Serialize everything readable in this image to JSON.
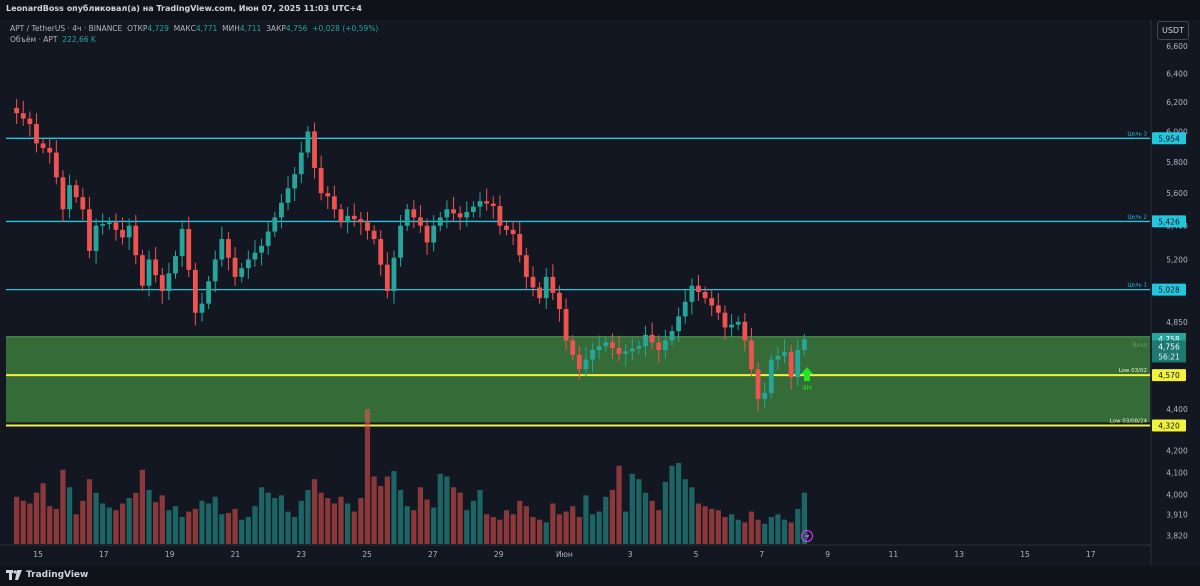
{
  "header": {
    "publish_line": "LeonardBoss опубликовал(а) на TradingView.com, Июн 07, 2025 11:03 UTC+4"
  },
  "legend": {
    "symbol": "APT / TetherUS · 4ч · BINANCE",
    "open_label": "ОТКР",
    "open": "4,729",
    "high_label": "МАКС",
    "high": "4,771",
    "low_label": "МИН",
    "low": "4,711",
    "close_label": "ЗАКР",
    "close": "4,756",
    "change": "+0,028 (+0,59%)",
    "volume_label": "Объём · APT",
    "volume": "222,66 K"
  },
  "currency_badge": "USDT",
  "footer": {
    "brand": "TradingView"
  },
  "colors": {
    "background": "#131722",
    "up": "#26a69a",
    "down": "#ef5350",
    "target_line": "#22c7de",
    "low_line": "#f2f23d",
    "zone_fill": "#3b7a3b",
    "signal": "#21e621"
  },
  "chart_data": {
    "type": "candlestick",
    "symbol": "APT / TetherUS",
    "timeframe": "4ч",
    "exchange": "BINANCE",
    "y_axis": {
      "ylim": [
        3.78,
        6.78
      ],
      "scale": "log",
      "ticks": [
        "6,600",
        "6,400",
        "6,200",
        "6,000",
        "5,800",
        "5,600",
        "5,400",
        "5,200",
        "4,850",
        "4,400",
        "4,200",
        "4,100",
        "4,000",
        "3,910",
        "3,820"
      ]
    },
    "x_axis": {
      "ticks": [
        "15",
        "17",
        "19",
        "21",
        "23",
        "25",
        "27",
        "29",
        "Июн",
        "3",
        "5",
        "7",
        "9",
        "11",
        "13",
        "15",
        "17"
      ]
    },
    "levels": [
      {
        "label": "Цель 3",
        "price": 5.954,
        "price_text": "5,954",
        "kind": "target"
      },
      {
        "label": "Цель 2",
        "price": 5.426,
        "price_text": "5,426",
        "kind": "target"
      },
      {
        "label": "Цель 1",
        "price": 5.028,
        "price_text": "5,028",
        "kind": "target"
      },
      {
        "label": "Low 03/02",
        "price": 4.57,
        "price_text": "4,570",
        "kind": "low"
      },
      {
        "label": "Low 03/08/24",
        "price": 4.32,
        "price_text": "4,320",
        "kind": "low"
      }
    ],
    "entry_zone": {
      "label": "Вход",
      "top": 4.77,
      "bottom": 4.335
    },
    "last_price": {
      "high_tag": "4,758",
      "close_tag": "4,756",
      "countdown": "56:21"
    },
    "signal": {
      "label": "4H",
      "price": 4.57,
      "direction": "up"
    },
    "path": [
      [
        0,
        6.16
      ],
      [
        3,
        6.05
      ],
      [
        4,
        5.92
      ],
      [
        6,
        5.86
      ],
      [
        7,
        5.7
      ],
      [
        8,
        5.5
      ],
      [
        9,
        5.65
      ],
      [
        11,
        5.5
      ],
      [
        12,
        5.25
      ],
      [
        13,
        5.4
      ],
      [
        15,
        5.42
      ],
      [
        17,
        5.33
      ],
      [
        18,
        5.4
      ],
      [
        20,
        5.05
      ],
      [
        21,
        5.2
      ],
      [
        23,
        5.02
      ],
      [
        25,
        5.22
      ],
      [
        26,
        5.38
      ],
      [
        28,
        4.9
      ],
      [
        29,
        4.95
      ],
      [
        31,
        5.2
      ],
      [
        32,
        5.32
      ],
      [
        34,
        5.1
      ],
      [
        36,
        5.2
      ],
      [
        38,
        5.28
      ],
      [
        40,
        5.45
      ],
      [
        43,
        5.72
      ],
      [
        45,
        6.0
      ],
      [
        46,
        5.76
      ],
      [
        47,
        5.6
      ],
      [
        48,
        5.58
      ],
      [
        50,
        5.42
      ],
      [
        51,
        5.46
      ],
      [
        53,
        5.42
      ],
      [
        55,
        5.32
      ],
      [
        57,
        5.02
      ],
      [
        59,
        5.4
      ],
      [
        60,
        5.5
      ],
      [
        62,
        5.4
      ],
      [
        63,
        5.3
      ],
      [
        64,
        5.4
      ],
      [
        66,
        5.5
      ],
      [
        68,
        5.45
      ],
      [
        71,
        5.55
      ],
      [
        73,
        5.52
      ],
      [
        74,
        5.4
      ],
      [
        76,
        5.35
      ],
      [
        78,
        5.1
      ],
      [
        80,
        4.98
      ],
      [
        81,
        5.1
      ],
      [
        83,
        4.92
      ],
      [
        84,
        4.75
      ],
      [
        86,
        4.6
      ],
      [
        88,
        4.7
      ],
      [
        90,
        4.74
      ],
      [
        92,
        4.68
      ],
      [
        95,
        4.72
      ],
      [
        96,
        4.78
      ],
      [
        98,
        4.7
      ],
      [
        100,
        4.8
      ],
      [
        102,
        4.96
      ],
      [
        103,
        5.05
      ],
      [
        105,
        4.98
      ],
      [
        107,
        4.9
      ],
      [
        108,
        4.82
      ],
      [
        110,
        4.85
      ],
      [
        111,
        4.75
      ],
      [
        113,
        4.45
      ],
      [
        114,
        4.48
      ],
      [
        115,
        4.65
      ],
      [
        117,
        4.69
      ],
      [
        118,
        4.56
      ],
      [
        119,
        4.7
      ],
      [
        120,
        4.756
      ]
    ],
    "volume": [
      35,
      32,
      30,
      38,
      45,
      28,
      26,
      55,
      42,
      22,
      32,
      48,
      38,
      30,
      27,
      25,
      30,
      34,
      38,
      55,
      40,
      31,
      36,
      25,
      28,
      20,
      24,
      26,
      32,
      30,
      35,
      22,
      23,
      26,
      18,
      20,
      28,
      42,
      38,
      34,
      36,
      24,
      20,
      32,
      40,
      48,
      38,
      34,
      30,
      35,
      30,
      24,
      34,
      100,
      50,
      43,
      50,
      54,
      40,
      28,
      25,
      42,
      33,
      27,
      52,
      50,
      42,
      38,
      25,
      32,
      40,
      22,
      20,
      18,
      25,
      22,
      32,
      28,
      20,
      18,
      16,
      30,
      22,
      24,
      28,
      20,
      36,
      22,
      24,
      35,
      40,
      58,
      24,
      52,
      48,
      38,
      32,
      25,
      46,
      58,
      60,
      48,
      42,
      30,
      28,
      26,
      25,
      20,
      22,
      18,
      16,
      24,
      18,
      15,
      20,
      22,
      18,
      16,
      26,
      38
    ]
  }
}
